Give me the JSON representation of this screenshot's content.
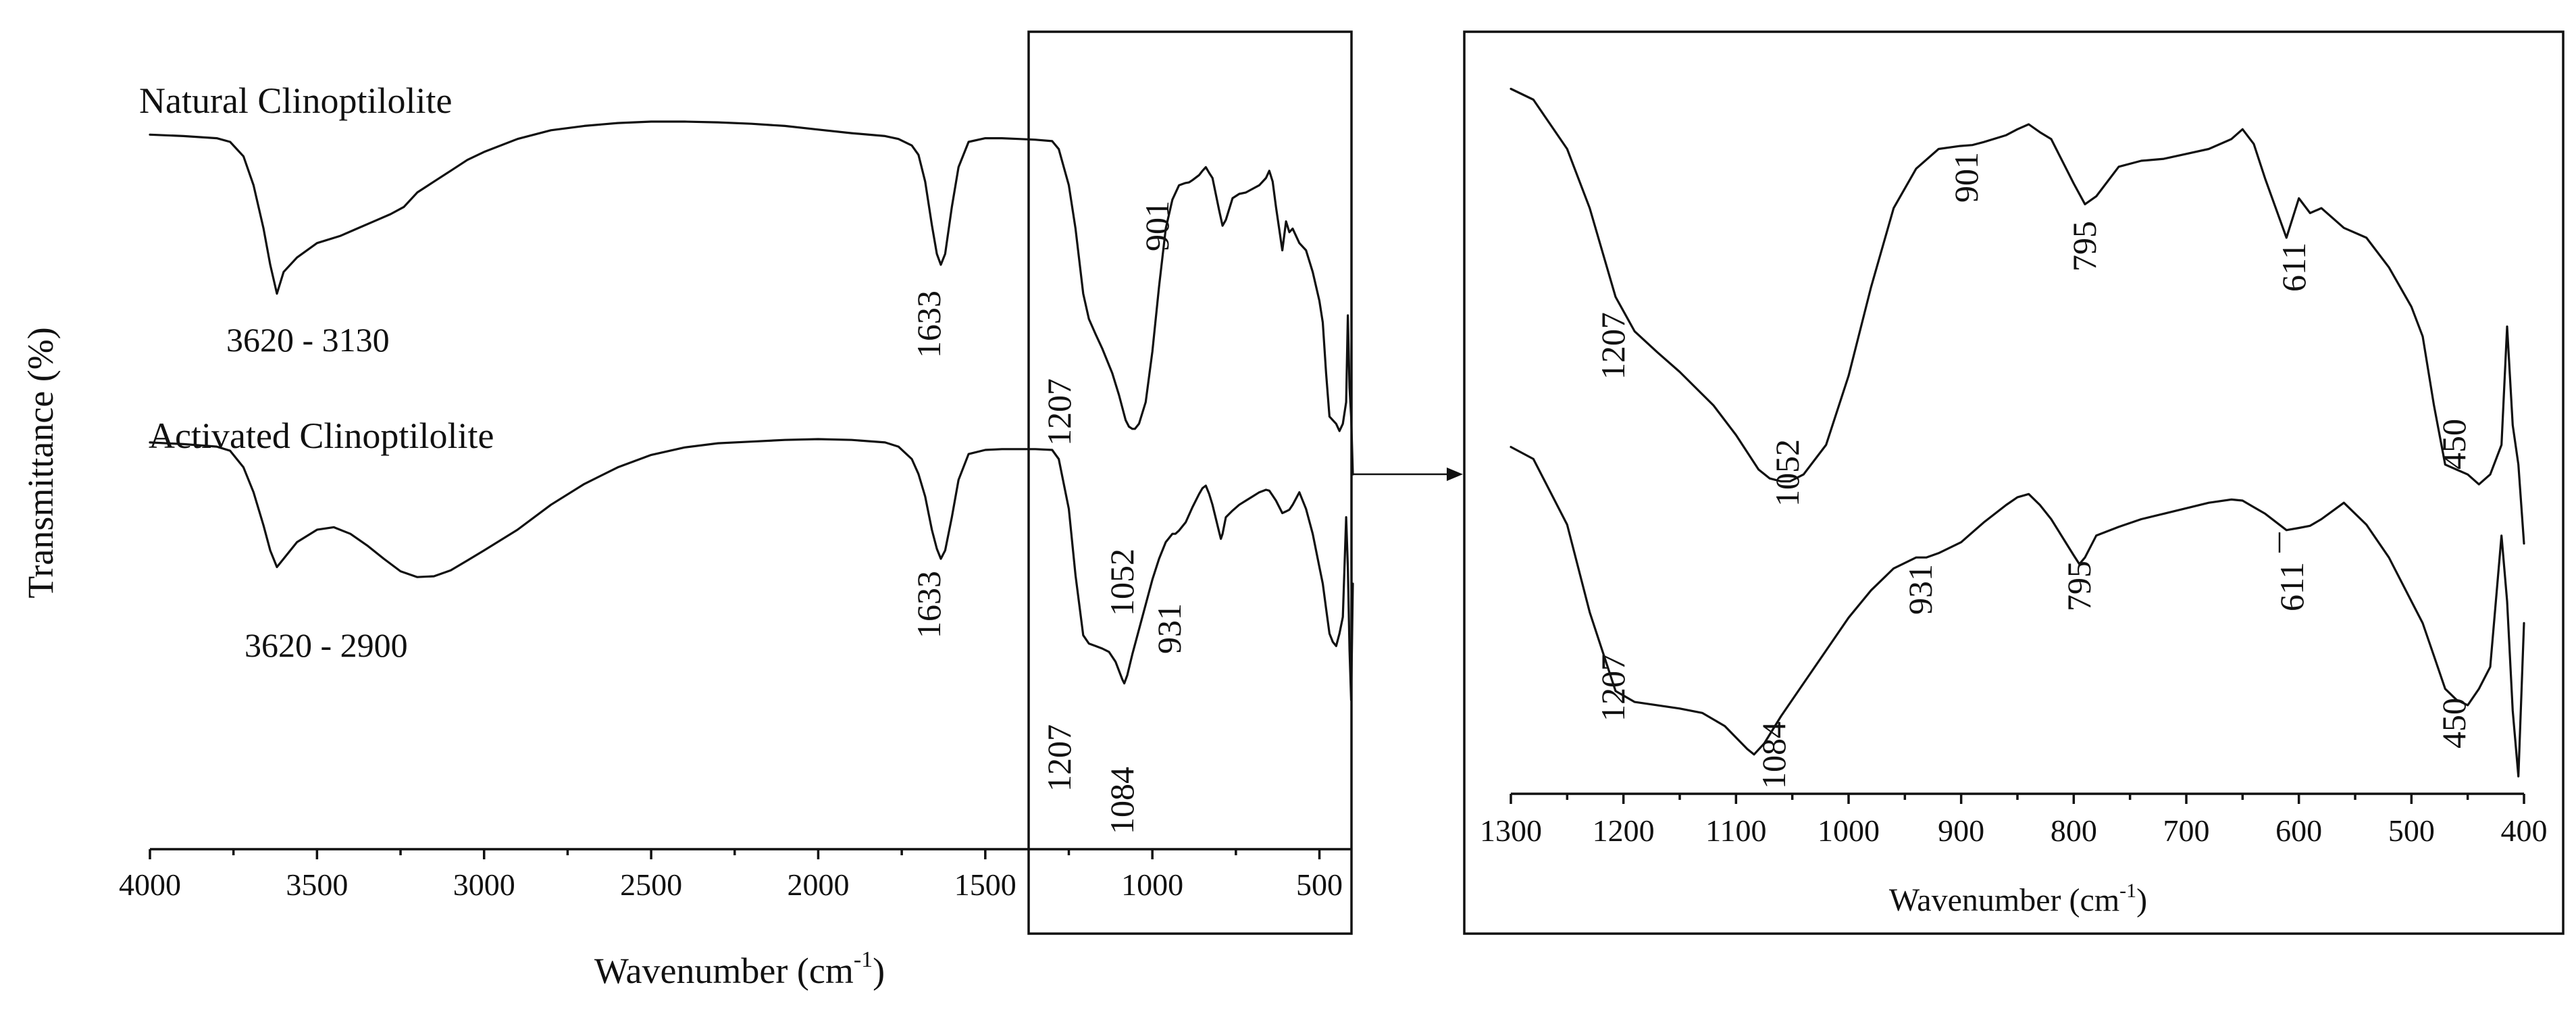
{
  "chart_data": [
    {
      "type": "line",
      "panel": "full-spectrum",
      "xlabel": "Wavenumber (cm-1)",
      "xlabel_base": "Wavenumber (cm",
      "xlabel_sup": "-1",
      "xlabel_tail": ")",
      "ylabel": "Transmittance (%)",
      "xlim": [
        4000,
        400
      ],
      "x_ticks": [
        4000,
        3500,
        3000,
        2500,
        2000,
        1500,
        1000,
        500
      ],
      "x_tick_labels": [
        "4000",
        "3500",
        "3000",
        "2500",
        "2000",
        "1500",
        "1000",
        "500"
      ],
      "y_scale": "arbitrary, stacked, no y ticks",
      "zoom_region": [
        1300,
        400
      ],
      "series": [
        {
          "name": "Natural Clinoptilolite",
          "x": [
            4000,
            3900,
            3800,
            3760,
            3720,
            3690,
            3660,
            3640,
            3620,
            3600,
            3560,
            3500,
            3430,
            3380,
            3330,
            3280,
            3240,
            3200,
            3150,
            3100,
            3050,
            3000,
            2900,
            2800,
            2700,
            2600,
            2500,
            2400,
            2300,
            2200,
            2100,
            2000,
            1900,
            1800,
            1760,
            1720,
            1700,
            1680,
            1660,
            1645,
            1633,
            1620,
            1600,
            1580,
            1550,
            1500,
            1450,
            1400,
            1350,
            1300,
            1280,
            1250,
            1230,
            1207,
            1190,
            1170,
            1150,
            1120,
            1100,
            1080,
            1070,
            1060,
            1052,
            1040,
            1020,
            1000,
            980,
            960,
            940,
            920,
            901,
            890,
            880,
            860,
            850,
            840,
            830,
            820,
            800,
            790,
            780,
            760,
            740,
            720,
            700,
            680,
            660,
            650,
            640,
            630,
            611,
            600,
            590,
            580,
            560,
            540,
            520,
            500,
            490,
            480,
            470,
            460,
            450,
            440,
            430,
            420,
            415,
            410,
            405,
            400
          ],
          "y": [
            97,
            96.8,
            96.5,
            96,
            94,
            90,
            84,
            79,
            75,
            78,
            80,
            82,
            83,
            84,
            85,
            86,
            87,
            89,
            90.5,
            92,
            93.5,
            94.6,
            96.4,
            97.6,
            98.2,
            98.6,
            98.8,
            98.8,
            98.7,
            98.5,
            98.2,
            97.7,
            97.2,
            96.8,
            96.4,
            95.5,
            94.2,
            90.5,
            84.5,
            80.5,
            79,
            80.5,
            87,
            92.5,
            96,
            96.5,
            96.5,
            96.4,
            96.3,
            96.1,
            95,
            90,
            84,
            75,
            71.5,
            69.4,
            67.4,
            64,
            61,
            57.5,
            56.6,
            56.3,
            56.3,
            57,
            60,
            67,
            76,
            84,
            88,
            90,
            90.3,
            90.4,
            90.7,
            91.4,
            92,
            92.5,
            91.7,
            91,
            86.5,
            84.4,
            85.2,
            88.2,
            88.8,
            89,
            89.5,
            90,
            91,
            92,
            90.5,
            87,
            81,
            85,
            83.5,
            84,
            82,
            81,
            78,
            74,
            71,
            64,
            58,
            57.5,
            57,
            56,
            57,
            60,
            72,
            62,
            58,
            50
          ]
        },
        {
          "name": "Activated Clinoptilolite",
          "x": [
            4000,
            3900,
            3800,
            3760,
            3720,
            3690,
            3660,
            3640,
            3620,
            3600,
            3560,
            3500,
            3450,
            3400,
            3350,
            3300,
            3250,
            3200,
            3150,
            3100,
            3050,
            3000,
            2900,
            2800,
            2700,
            2600,
            2500,
            2400,
            2300,
            2200,
            2100,
            2000,
            1900,
            1800,
            1760,
            1720,
            1700,
            1680,
            1660,
            1645,
            1633,
            1620,
            1600,
            1580,
            1550,
            1500,
            1450,
            1400,
            1350,
            1300,
            1280,
            1250,
            1230,
            1207,
            1190,
            1170,
            1150,
            1130,
            1110,
            1090,
            1084,
            1075,
            1060,
            1040,
            1020,
            1000,
            980,
            960,
            940,
            931,
            920,
            900,
            880,
            860,
            850,
            840,
            830,
            820,
            800,
            795,
            790,
            780,
            760,
            740,
            720,
            700,
            680,
            660,
            650,
            640,
            630,
            611,
            600,
            590,
            580,
            560,
            540,
            520,
            500,
            490,
            480,
            470,
            460,
            450,
            440,
            430,
            420,
            415,
            410,
            405,
            400
          ],
          "y": [
            97,
            96.8,
            96.5,
            96,
            94,
            91,
            87,
            84,
            82,
            83,
            85,
            86.5,
            86.8,
            86,
            84.6,
            83,
            81.5,
            80.8,
            80.9,
            81.6,
            82.8,
            84,
            86.5,
            89.5,
            92,
            94,
            95.5,
            96.4,
            96.9,
            97.1,
            97.3,
            97.4,
            97.3,
            97,
            96.5,
            95,
            93.2,
            90.5,
            86.5,
            84.2,
            83,
            84,
            88,
            92.5,
            95.6,
            96.1,
            96.2,
            96.2,
            96.2,
            96.1,
            95,
            89,
            81,
            73.8,
            72.8,
            72.5,
            72.2,
            71.8,
            70.6,
            68.5,
            68,
            69,
            71.5,
            74.5,
            77.5,
            80.5,
            83,
            85,
            86,
            86,
            86.4,
            87.4,
            89.2,
            90.8,
            91.5,
            91.8,
            90.8,
            89.5,
            86.2,
            85.4,
            86,
            88,
            88.8,
            89.5,
            90,
            90.5,
            91,
            91.3,
            91.2,
            90.6,
            90,
            88.5,
            88.7,
            88.9,
            89.5,
            91,
            89,
            86,
            82,
            80,
            77,
            74,
            73,
            72.5,
            74,
            76,
            88,
            82,
            72,
            66,
            80
          ]
        }
      ],
      "annotations": {
        "range_natural": "3620 - 3130",
        "range_activated": "3620 - 2900",
        "peak_natural_1633": "1633",
        "peak_activated_1633": "1633",
        "peak_natural_1207": "1207",
        "peak_natural_1052": "1052",
        "peak_natural_901": "901",
        "peak_activated_1207": "1207",
        "peak_activated_1084": "1084",
        "peak_activated_931": "931"
      },
      "grid": false,
      "legend": "inline labels"
    },
    {
      "type": "line",
      "panel": "zoom",
      "xlabel": "Wavenumber (cm-1)",
      "xlabel_base": "Wavenumber (cm",
      "xlabel_sup": "-1",
      "xlabel_tail": ")",
      "xlim": [
        1300,
        400
      ],
      "x_ticks": [
        1300,
        1200,
        1100,
        1000,
        900,
        800,
        700,
        600,
        500,
        400
      ],
      "x_tick_labels": [
        "1300",
        "1200",
        "1100",
        "1000",
        "900",
        "800",
        "700",
        "600",
        "500",
        "400"
      ],
      "grid": false,
      "annotations": {
        "top_1207": "1207",
        "top_1052": "1052",
        "top_901": "901",
        "top_795": "795",
        "top_611": "611",
        "top_450": "450",
        "bottom_1207": "1207",
        "bottom_1084": "1084",
        "bottom_931": "931",
        "bottom_795": "795",
        "bottom_611": "611",
        "bottom_450": "450"
      }
    }
  ]
}
